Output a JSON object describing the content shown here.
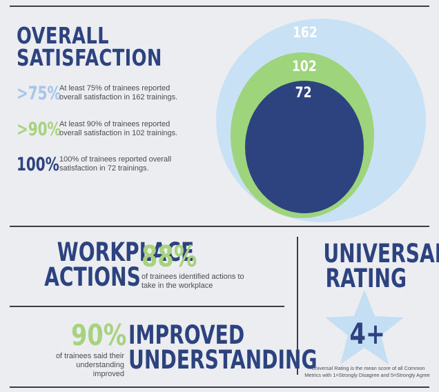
{
  "overall_satisfaction": {
    "title_line1": "OVERALL",
    "title_line2": "SATISFACTION",
    "stats": [
      {
        "pct": ">75%",
        "text": "At least 75% of trainees reported overall satisfaction in 162 trainings.",
        "color": "#a4c6ea"
      },
      {
        "pct": ">90%",
        "text": "At least 90% of trainees reported overall satisfaction in 102 trainings.",
        "color": "#a8d37e"
      },
      {
        "pct": "100%",
        "text": "100% of trainees reported overall satisfaction in 72 trainings.",
        "color": "#2c4380"
      }
    ],
    "circles": [
      {
        "label": "162",
        "color": "#c9e1f5"
      },
      {
        "label": "102",
        "color": "#9ed47b"
      },
      {
        "label": "72",
        "color": "#2c4380"
      }
    ]
  },
  "workplace_actions": {
    "title_line1": "WORKPLACE",
    "title_line2": "ACTIONS",
    "pct": "88%",
    "text": "of trainees identified actions to take in the workplace"
  },
  "improved_understanding": {
    "pct": "90%",
    "text": "of trainees said their understanding improved",
    "title_line1": "IMPROVED",
    "title_line2": "UNDERSTANDING"
  },
  "universal_rating": {
    "title_line1": "UNIVERSAL",
    "title_line2": "RATING",
    "value": "4+",
    "star_color": "#c4def4",
    "footnote": "*Universal Rating is the mean score of all Common Metrics with 1=Strongly Disagree and 5=Strongly Agree"
  }
}
